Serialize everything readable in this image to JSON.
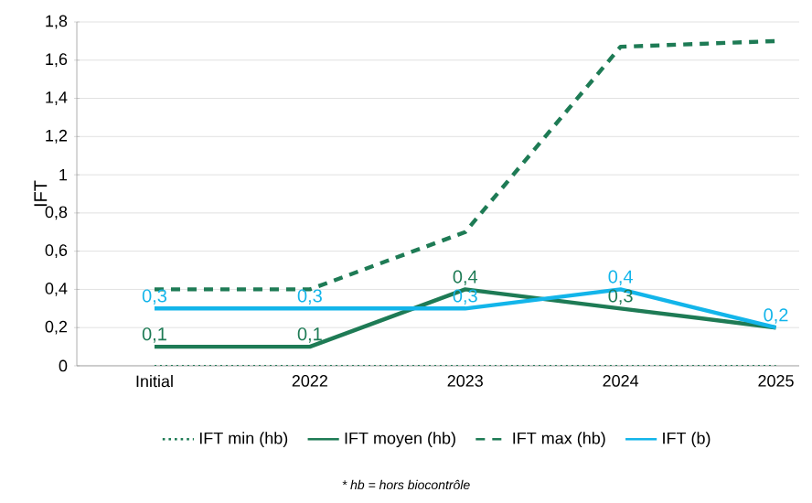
{
  "chart_data": {
    "type": "line",
    "ylabel": "IFT",
    "categories": [
      "Initial",
      "2022",
      "2023",
      "2024",
      "2025"
    ],
    "series": [
      {
        "name": "IFT min (hb)",
        "color": "#1e7b55",
        "line_style": "dotted",
        "values": [
          0,
          0,
          0,
          0,
          0
        ]
      },
      {
        "name": "IFT moyen (hb)",
        "color": "#1e7b55",
        "line_style": "solid",
        "values": [
          0.1,
          0.1,
          0.4,
          0.3,
          0.2
        ],
        "value_labels": [
          "0,1",
          "0,1",
          "0,4",
          "0,3",
          null
        ]
      },
      {
        "name": "IFT max (hb)",
        "color": "#1e7b55",
        "line_style": "dashed",
        "values": [
          0.4,
          0.4,
          0.7,
          1.67,
          1.7
        ]
      },
      {
        "name": "IFT (b)",
        "color": "#13b5ea",
        "line_style": "solid",
        "values": [
          0.3,
          0.3,
          0.3,
          0.4,
          0.2
        ],
        "value_labels": [
          "0,3",
          "0,3",
          "0,3",
          "0,4",
          "0,2"
        ]
      }
    ],
    "ylim": [
      0,
      1.8
    ],
    "yticks": [
      {
        "value": 0,
        "label": "0"
      },
      {
        "value": 0.2,
        "label": "0,2"
      },
      {
        "value": 0.4,
        "label": "0,4"
      },
      {
        "value": 0.6,
        "label": "0,6"
      },
      {
        "value": 0.8,
        "label": "0,8"
      },
      {
        "value": 1,
        "label": "1"
      },
      {
        "value": 1.2,
        "label": "1,2"
      },
      {
        "value": 1.4,
        "label": "1,4"
      },
      {
        "value": 1.6,
        "label": "1,6"
      },
      {
        "value": 1.8,
        "label": "1,8"
      }
    ],
    "grid": "y",
    "legend": "bottom",
    "annotations": [
      "* hb = hors biocontrôle"
    ]
  }
}
